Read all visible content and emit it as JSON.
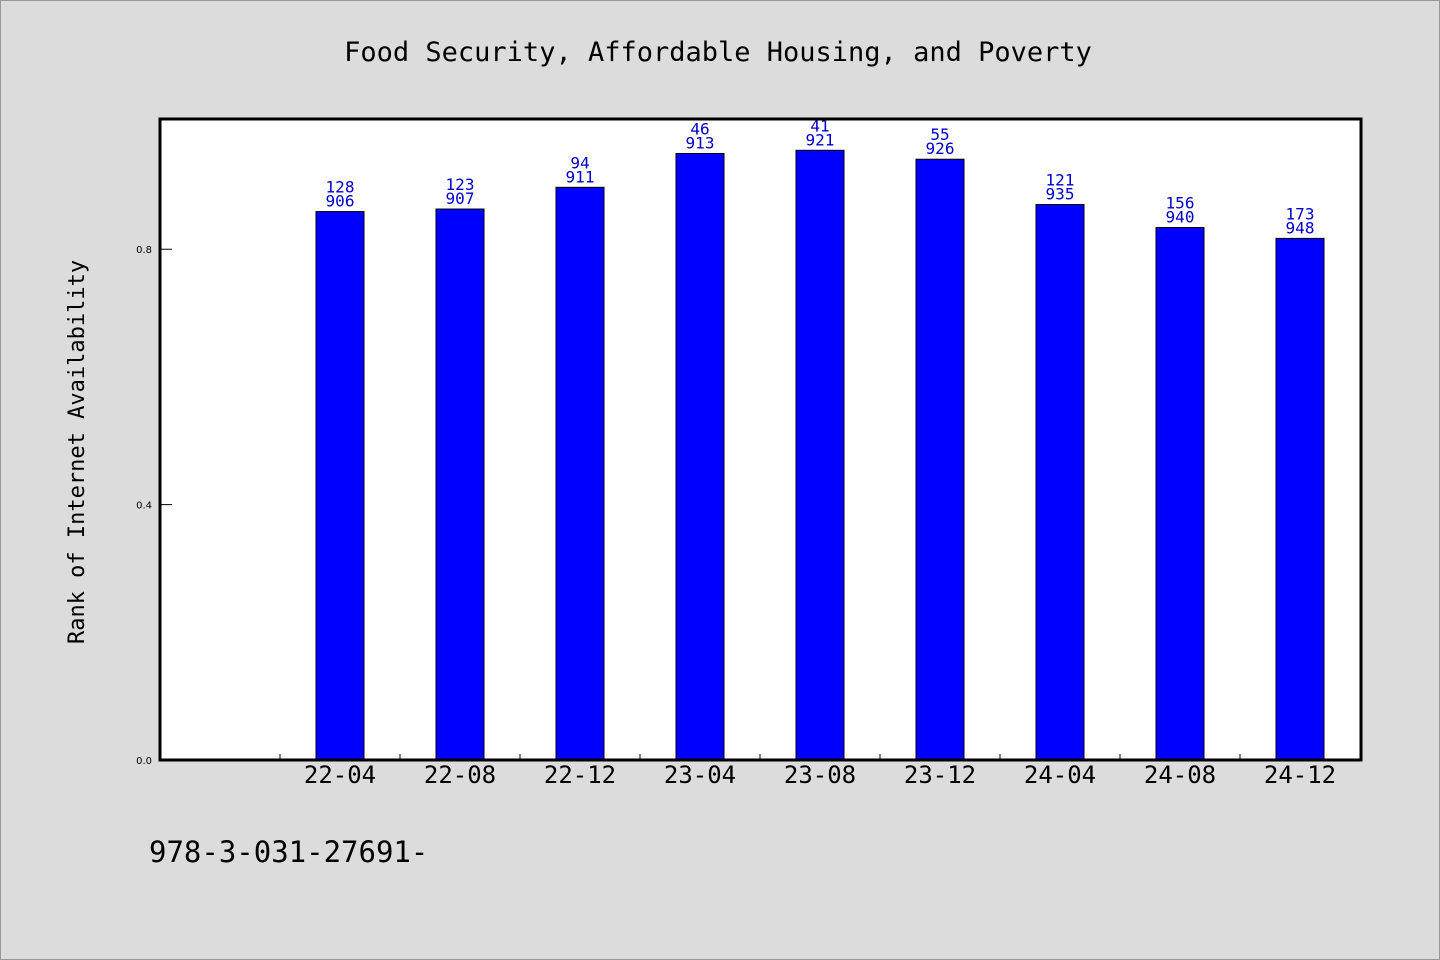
{
  "chart_data": {
    "type": "bar",
    "title": "Food Security, Affordable Housing, and Poverty",
    "xlabel": "",
    "ylabel": "Rank of Internet Availability",
    "categories": [
      "22-04",
      "22-08",
      "22-12",
      "23-04",
      "23-08",
      "23-12",
      "24-04",
      "24-08",
      "24-12"
    ],
    "values": [
      0.859,
      0.863,
      0.897,
      0.95,
      0.955,
      0.941,
      0.87,
      0.834,
      0.817
    ],
    "data_labels_top": [
      "128",
      "123",
      "94",
      "46",
      "41",
      "55",
      "121",
      "156",
      "173"
    ],
    "data_labels_bottom": [
      "906",
      "907",
      "911",
      "913",
      "921",
      "926",
      "935",
      "940",
      "948"
    ],
    "yticks": [
      {
        "value": 0.0,
        "label": "0.0"
      },
      {
        "value": 0.4,
        "label": "0.4"
      },
      {
        "value": 0.8,
        "label": "0.8"
      }
    ],
    "ylim": [
      0,
      1.004
    ],
    "grid": false,
    "bar_color": "#0000ff",
    "label_color": "#0000cc"
  },
  "footer_text": "978-3-031-27691-",
  "colors": {
    "background": "#dcdcdc",
    "plot_background": "#ffffff"
  }
}
